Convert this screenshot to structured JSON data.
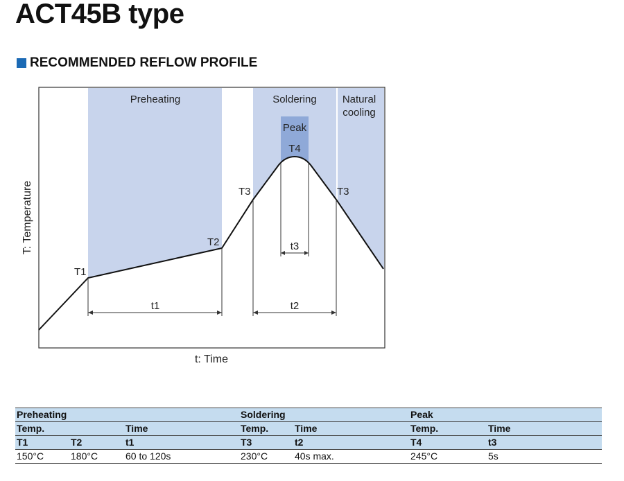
{
  "title": "ACT45B type",
  "section_title": "RECOMMENDED REFLOW PROFILE",
  "diagram": {
    "zones": {
      "preheating": "Preheating",
      "soldering": "Soldering",
      "natural_cooling_1": "Natural",
      "natural_cooling_2": "cooling",
      "peak": "Peak"
    },
    "points": {
      "t1": "T1",
      "t2": "T2",
      "t3_left": "T3",
      "t3_right": "T3",
      "t4": "T4"
    },
    "durations": {
      "t1": "t1",
      "t2": "t2",
      "t3": "t3"
    },
    "y_label": "T: Temperature",
    "x_label": "t: Time",
    "colors": {
      "zone": "#c8d4ec",
      "peak": "#8fa9d8",
      "accent": "#1b6ab5"
    }
  },
  "table": {
    "groups": [
      "Preheating",
      "Soldering",
      "Peak"
    ],
    "sub": [
      "Temp.",
      "Time",
      "Temp.",
      "Time",
      "Temp.",
      "Time"
    ],
    "symbols": [
      "T1",
      "T2",
      "t1",
      "T3",
      "t2",
      "T4",
      "t3"
    ],
    "values": [
      "150°C",
      "180°C",
      "60 to 120s",
      "230°C",
      "40s max.",
      "245°C",
      "5s"
    ]
  }
}
